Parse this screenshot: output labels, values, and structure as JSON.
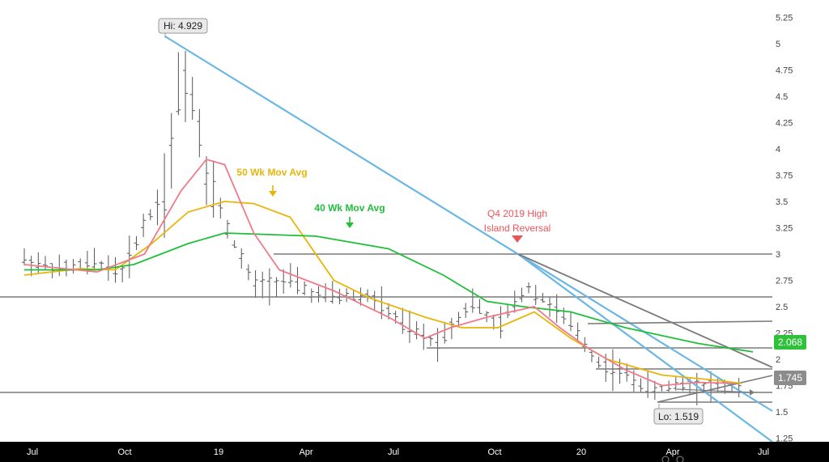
{
  "chart_data": {
    "type": "ohlc-bar",
    "x_tick_labels": [
      "Jul",
      "Oct",
      "19",
      "Apr",
      "Jul",
      "Oct",
      "20",
      "Apr",
      "Jul"
    ],
    "y_tick_labels": [
      "5.25",
      "5",
      "4.75",
      "4.5",
      "4.25",
      "4",
      "3.75",
      "3.5",
      "3.25",
      "3",
      "2.75",
      "2.5",
      "2.25",
      "2",
      "1.75",
      "1.5",
      "1.25"
    ],
    "ylim": [
      1.2,
      5.25
    ],
    "x_periods": [
      2018.45,
      2020.55
    ],
    "grid": false,
    "price_points": [
      {
        "x": 2018.45,
        "y": 2.95
      },
      {
        "x": 2018.55,
        "y": 2.85
      },
      {
        "x": 2018.65,
        "y": 2.92
      },
      {
        "x": 2018.72,
        "y": 2.82
      },
      {
        "x": 2018.78,
        "y": 3.3
      },
      {
        "x": 2018.84,
        "y": 3.6
      },
      {
        "x": 2018.88,
        "y": 4.7
      },
      {
        "x": 2018.91,
        "y": 4.55
      },
      {
        "x": 2018.95,
        "y": 3.8
      },
      {
        "x": 2019.0,
        "y": 3.3
      },
      {
        "x": 2019.08,
        "y": 2.7
      },
      {
        "x": 2019.18,
        "y": 2.75
      },
      {
        "x": 2019.25,
        "y": 2.6
      },
      {
        "x": 2019.4,
        "y": 2.6
      },
      {
        "x": 2019.5,
        "y": 2.3
      },
      {
        "x": 2019.58,
        "y": 2.15
      },
      {
        "x": 2019.68,
        "y": 2.55
      },
      {
        "x": 2019.75,
        "y": 2.3
      },
      {
        "x": 2019.83,
        "y": 2.7
      },
      {
        "x": 2019.9,
        "y": 2.5
      },
      {
        "x": 2019.97,
        "y": 2.25
      },
      {
        "x": 2020.02,
        "y": 1.98
      },
      {
        "x": 2020.1,
        "y": 1.85
      },
      {
        "x": 2020.18,
        "y": 1.7
      },
      {
        "x": 2020.25,
        "y": 1.78
      },
      {
        "x": 2020.32,
        "y": 1.75
      },
      {
        "x": 2020.38,
        "y": 1.74
      }
    ],
    "series": [
      {
        "name": "50 Wk Mov Avg",
        "color": "#e8b50a",
        "points": [
          [
            2018.45,
            2.8
          ],
          [
            2018.6,
            2.86
          ],
          [
            2018.7,
            2.85
          ],
          [
            2018.8,
            3.1
          ],
          [
            2018.9,
            3.4
          ],
          [
            2019.0,
            3.5
          ],
          [
            2019.08,
            3.48
          ],
          [
            2019.18,
            3.35
          ],
          [
            2019.3,
            2.75
          ],
          [
            2019.4,
            2.58
          ],
          [
            2019.55,
            2.4
          ],
          [
            2019.65,
            2.3
          ],
          [
            2019.75,
            2.3
          ],
          [
            2019.85,
            2.45
          ],
          [
            2019.95,
            2.2
          ],
          [
            2020.05,
            2.0
          ],
          [
            2020.2,
            1.85
          ],
          [
            2020.35,
            1.8
          ],
          [
            2020.42,
            1.77
          ]
        ]
      },
      {
        "name": "40 Wk Mov Avg",
        "color": "#1fbf3a",
        "points": [
          [
            2018.45,
            2.85
          ],
          [
            2018.65,
            2.85
          ],
          [
            2018.75,
            2.9
          ],
          [
            2018.9,
            3.1
          ],
          [
            2019.0,
            3.2
          ],
          [
            2019.25,
            3.17
          ],
          [
            2019.45,
            3.05
          ],
          [
            2019.6,
            2.8
          ],
          [
            2019.72,
            2.55
          ],
          [
            2019.82,
            2.5
          ],
          [
            2019.95,
            2.45
          ],
          [
            2020.1,
            2.3
          ],
          [
            2020.3,
            2.15
          ],
          [
            2020.45,
            2.07
          ]
        ]
      },
      {
        "name": "",
        "color": "#f07a8a",
        "points": [
          [
            2018.45,
            2.9
          ],
          [
            2018.65,
            2.83
          ],
          [
            2018.78,
            3.0
          ],
          [
            2018.88,
            3.6
          ],
          [
            2018.95,
            3.9
          ],
          [
            2019.0,
            3.85
          ],
          [
            2019.08,
            3.2
          ],
          [
            2019.15,
            2.85
          ],
          [
            2019.3,
            2.65
          ],
          [
            2019.45,
            2.4
          ],
          [
            2019.55,
            2.2
          ],
          [
            2019.62,
            2.3
          ],
          [
            2019.72,
            2.4
          ],
          [
            2019.85,
            2.5
          ],
          [
            2019.92,
            2.3
          ],
          [
            2020.0,
            2.1
          ],
          [
            2020.1,
            1.9
          ],
          [
            2020.2,
            1.75
          ],
          [
            2020.3,
            1.78
          ],
          [
            2020.4,
            1.77
          ]
        ]
      }
    ],
    "labels": {
      "hi": "Hi: 4.929",
      "lo": "Lo: 1.519",
      "ma50": "50 Wk Mov Avg",
      "ma40": "40 Wk Mov Avg",
      "q4_line1": "Q4 2019 High",
      "q4_line2": "Island Reversal",
      "price_green": "2.068",
      "price_grey": "1.745"
    },
    "colors": {
      "trendline_blue": "#6ab7e6",
      "support_grey": "#7a7a7a",
      "price_bars": "#555555",
      "annotation_red": "#e8565a",
      "green_badge": "#2ec23a",
      "grey_badge": "#8c8c8c",
      "axis_bar": "#000000"
    }
  }
}
